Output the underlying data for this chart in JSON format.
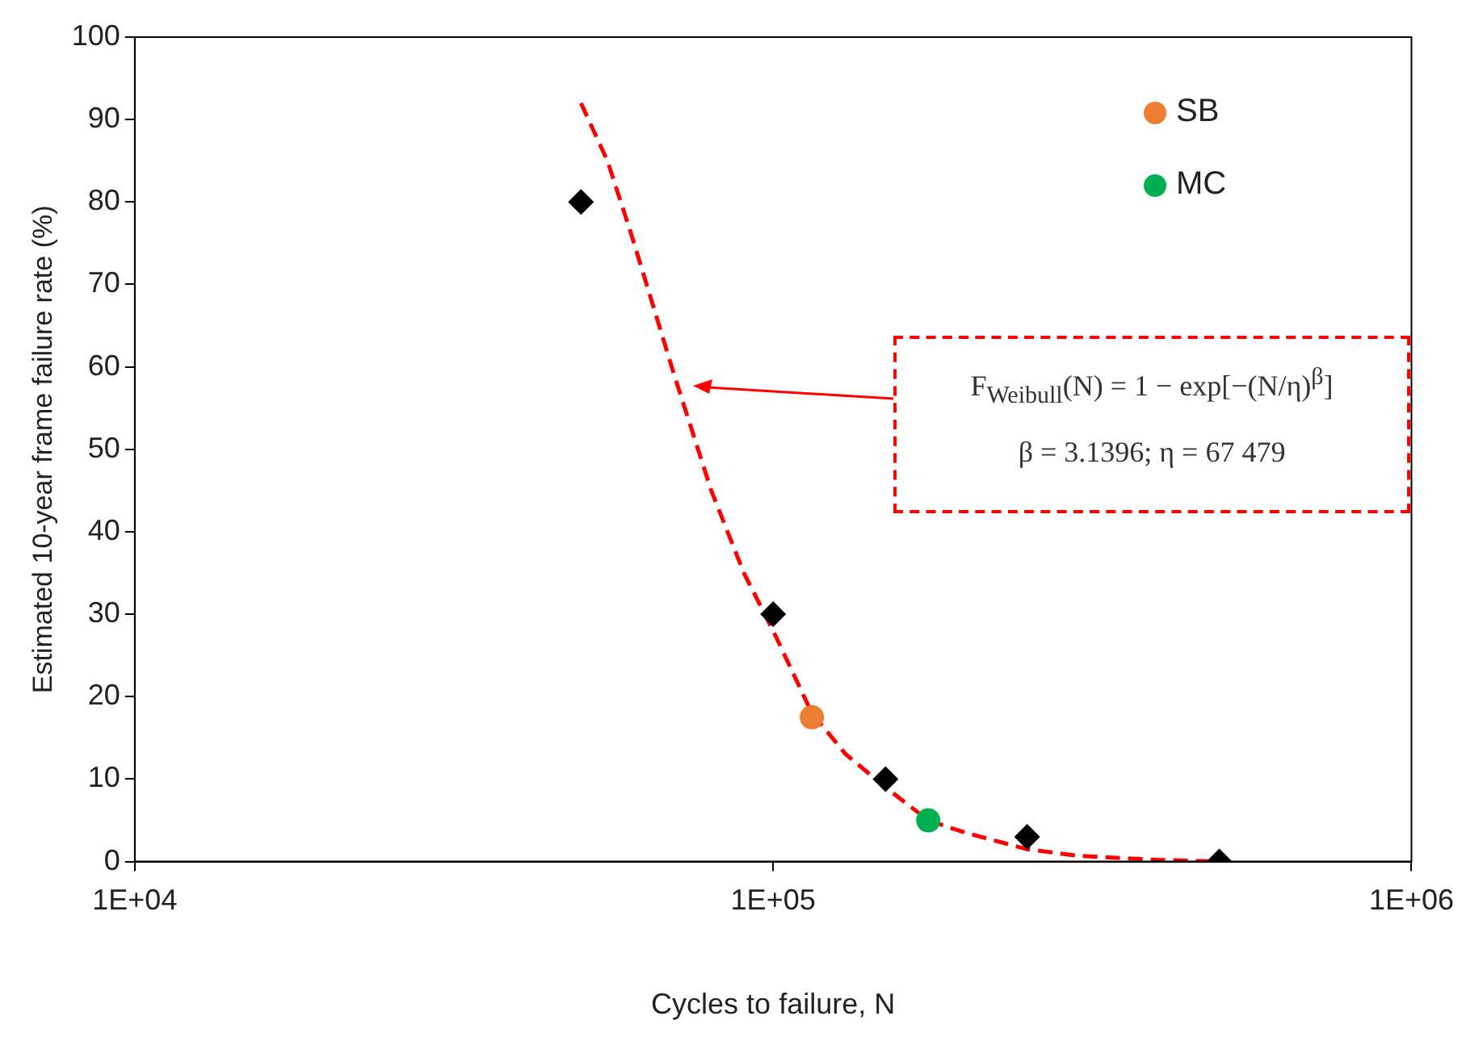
{
  "chart_data": {
    "type": "scatter",
    "xlabel": "Cycles to failure, N",
    "ylabel": "Estimated 10-year frame failure rate (%)",
    "log": "x",
    "xlim": [
      10000,
      1000000
    ],
    "xticks": [
      {
        "value": 10000,
        "label": "1E+04"
      },
      {
        "value": 100000,
        "label": "1E+05"
      },
      {
        "value": 1000000,
        "label": "1E+06"
      }
    ],
    "ylim": [
      0,
      100
    ],
    "yticks": [
      0,
      10,
      20,
      30,
      40,
      50,
      60,
      70,
      80,
      90,
      100
    ],
    "grid": false,
    "legend": "top right",
    "series": [
      {
        "marker": "diamond",
        "color": "#000000",
        "x": [
          50000,
          100000,
          150000,
          250000,
          500000
        ],
        "values": [
          80,
          30,
          10,
          3,
          0
        ]
      },
      {
        "name": "SB",
        "marker": "circle",
        "color": "#ed7d31",
        "x": [
          115000
        ],
        "values": [
          17.5
        ]
      },
      {
        "name": "MC",
        "marker": "circle",
        "color": "#00b050",
        "x": [
          175000
        ],
        "values": [
          5
        ]
      },
      {
        "type": "line",
        "marker": "none",
        "line_style": "dashed",
        "color": "#ff0000",
        "x": [
          50000,
          55000,
          60000,
          70000,
          80000,
          90000,
          100000,
          115000,
          130000,
          150000,
          175000,
          200000,
          250000,
          300000,
          400000,
          500000
        ],
        "values": [
          92,
          85,
          76,
          59,
          45,
          35,
          28,
          18,
          13,
          9,
          5,
          3.5,
          1.5,
          0.7,
          0.2,
          0
        ]
      }
    ],
    "annotations": [
      "F$_{Weibull}$(N) = 1 − exp[−(N/η)$^{β}$]",
      "β = 3.1396; η = 67 479"
    ]
  }
}
